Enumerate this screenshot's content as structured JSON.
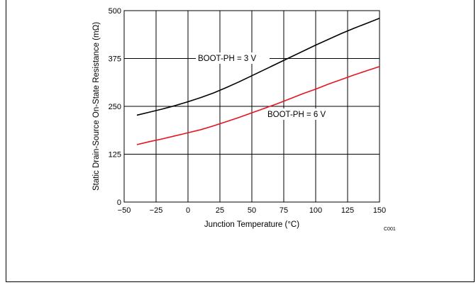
{
  "chart_data": {
    "type": "line",
    "xlabel": "Junction Temperature (°C)",
    "ylabel": "Static Drain-Source On-State Resistance (mΩ)",
    "xlim": [
      -50,
      150
    ],
    "ylim": [
      0,
      500
    ],
    "xticks": [
      "−50",
      "−25",
      "0",
      "25",
      "50",
      "75",
      "100",
      "125",
      "150"
    ],
    "yticks": [
      "0",
      "125",
      "250",
      "375",
      "500"
    ],
    "grid": true,
    "series": [
      {
        "name": "BOOT-PH = 3 V",
        "color": "#000000",
        "x": [
          -40,
          -30,
          -20,
          -10,
          0,
          10,
          20,
          30,
          40,
          50,
          60,
          70,
          80,
          90,
          100,
          110,
          120,
          130,
          140,
          150
        ],
        "y": [
          227,
          235,
          243,
          252,
          262,
          273,
          285,
          299,
          314,
          330,
          346,
          362,
          378,
          394,
          410,
          425,
          440,
          454,
          467,
          480
        ]
      },
      {
        "name": "BOOT-PH = 6 V",
        "color": "#e8131b",
        "x": [
          -40,
          -30,
          -20,
          -10,
          0,
          10,
          20,
          30,
          40,
          50,
          60,
          70,
          80,
          90,
          100,
          110,
          120,
          130,
          140,
          150
        ],
        "y": [
          150,
          158,
          165,
          173,
          181,
          189,
          199,
          210,
          221,
          233,
          245,
          257,
          270,
          283,
          295,
          308,
          320,
          332,
          343,
          354
        ]
      }
    ],
    "annotations": [
      "BOOT-PH = 3 V",
      "BOOT-PH = 6 V"
    ],
    "figure_code": "C001"
  }
}
